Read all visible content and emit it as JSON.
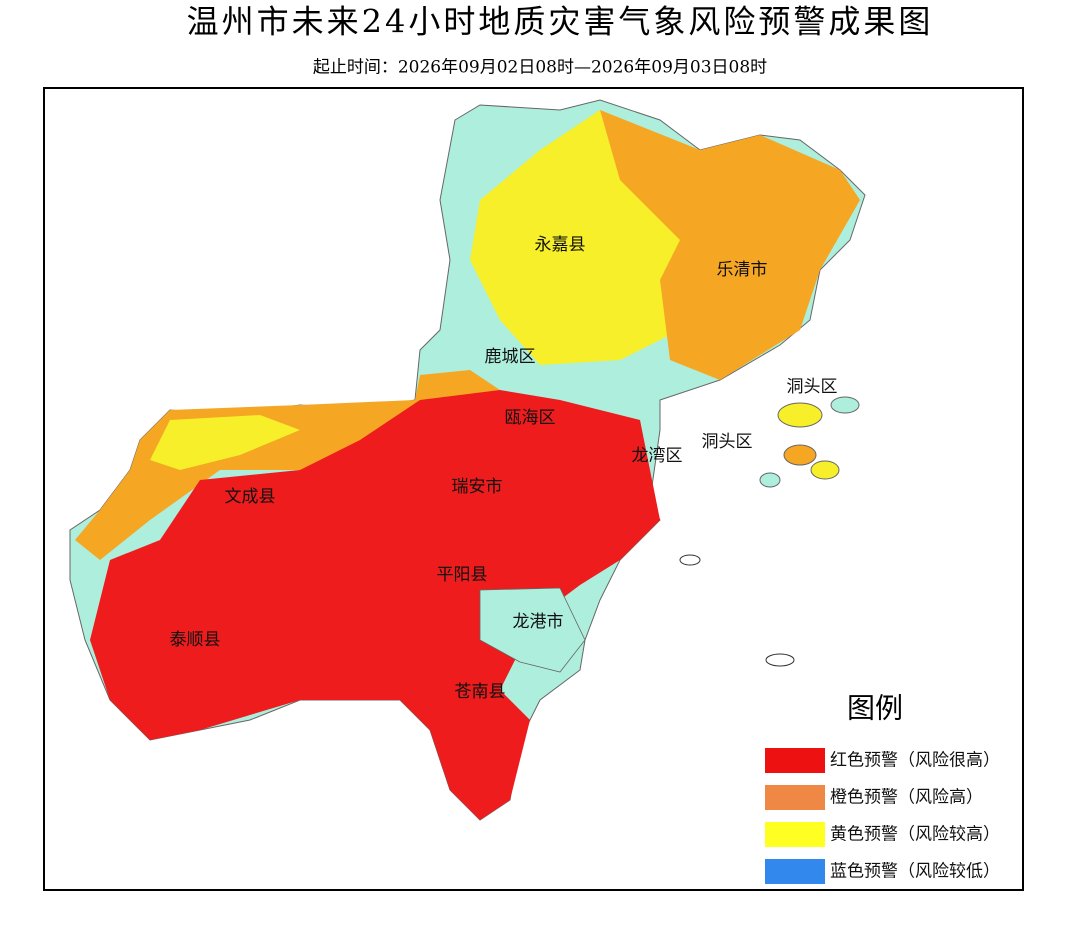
{
  "header": {
    "title": "温州市未来24小时地质灾害气象风险预警成果图",
    "subtitle": "起止时间：2026年09月02日08时—2026年09月03日08时"
  },
  "regions": [
    {
      "label": "永嘉县"
    },
    {
      "label": "乐清市"
    },
    {
      "label": "鹿城区"
    },
    {
      "label": "洞头区"
    },
    {
      "label": "瓯海区"
    },
    {
      "label": "洞头区"
    },
    {
      "label": "龙湾区"
    },
    {
      "label": "瑞安市"
    },
    {
      "label": "文成县"
    },
    {
      "label": "平阳县"
    },
    {
      "label": "龙港市"
    },
    {
      "label": "泰顺县"
    },
    {
      "label": "苍南县"
    }
  ],
  "legend": {
    "title": "图例",
    "items": [
      {
        "label": "红色预警（风险很高）",
        "color": "#ee1111"
      },
      {
        "label": "橙色预警（风险高）",
        "color": "#ee8844"
      },
      {
        "label": "黄色预警（风险较高）",
        "color": "#ffff22"
      },
      {
        "label": "蓝色预警（风险较低）",
        "color": "#3388ee"
      }
    ]
  }
}
